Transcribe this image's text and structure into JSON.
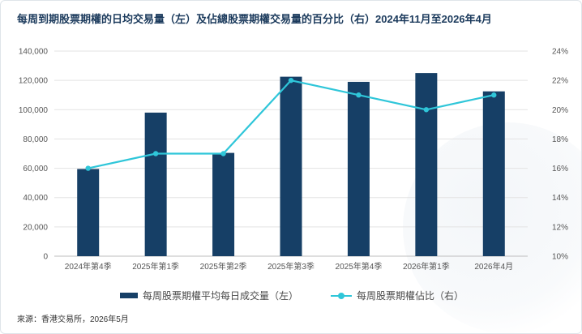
{
  "title": "每周到期股票期權的日均交易量（左）及佔總股票期權交易量的百分比（右）2024年11月至2026年4月",
  "source": "來源：香港交易所，2026年5月",
  "colors": {
    "bar": "#163f66",
    "line": "#2fc6d9",
    "title": "#1b3a5c",
    "grid": "#e3e3e3",
    "axis_text": "#555555"
  },
  "chart_data": {
    "type": "bar",
    "categories": [
      "2024年第4季",
      "2025年第1季",
      "2025年第2季",
      "2025年第3季",
      "2025年第4季",
      "2026年第1季",
      "2026年4月"
    ],
    "series": [
      {
        "name": "每周股票期權平均每日成交量（左）",
        "type": "bar",
        "axis": "left",
        "values": [
          59500,
          98000,
          70500,
          122500,
          119000,
          125000,
          112500
        ]
      },
      {
        "name": "每周股票期權佔比（右）",
        "type": "line",
        "axis": "right",
        "values": [
          16,
          17,
          17,
          22,
          21,
          20,
          21
        ]
      }
    ],
    "y_left": {
      "ylim": [
        0,
        140000
      ],
      "ticks": [
        "0",
        "20,000",
        "40,000",
        "60,000",
        "80,000",
        "100,000",
        "120,000",
        "140,000"
      ]
    },
    "y_right": {
      "ylim": [
        10,
        24
      ],
      "unit": "%",
      "ticks": [
        "10%",
        "12%",
        "14%",
        "16%",
        "18%",
        "20%",
        "22%",
        "24%"
      ]
    },
    "grid": true,
    "legend_position": "bottom"
  }
}
